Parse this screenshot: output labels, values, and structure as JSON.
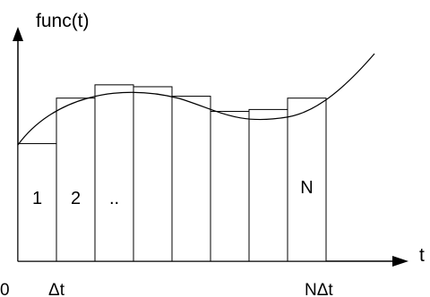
{
  "y_axis_label": "func(t)",
  "x_axis_label": "t",
  "x_ticks": [
    "0",
    "Δt",
    "NΔt"
  ],
  "bars": [
    {
      "label": "1",
      "height": 0.62
    },
    {
      "label": "2",
      "height": 0.86
    },
    {
      "label": "..",
      "height": 0.93
    },
    {
      "label": "",
      "height": 0.92
    },
    {
      "label": "",
      "height": 0.87
    },
    {
      "label": "",
      "height": 0.79
    },
    {
      "label": "",
      "height": 0.8
    },
    {
      "label": "N",
      "height": 0.86
    }
  ],
  "colors": {
    "stroke": "#000000",
    "background": "#ffffff"
  }
}
